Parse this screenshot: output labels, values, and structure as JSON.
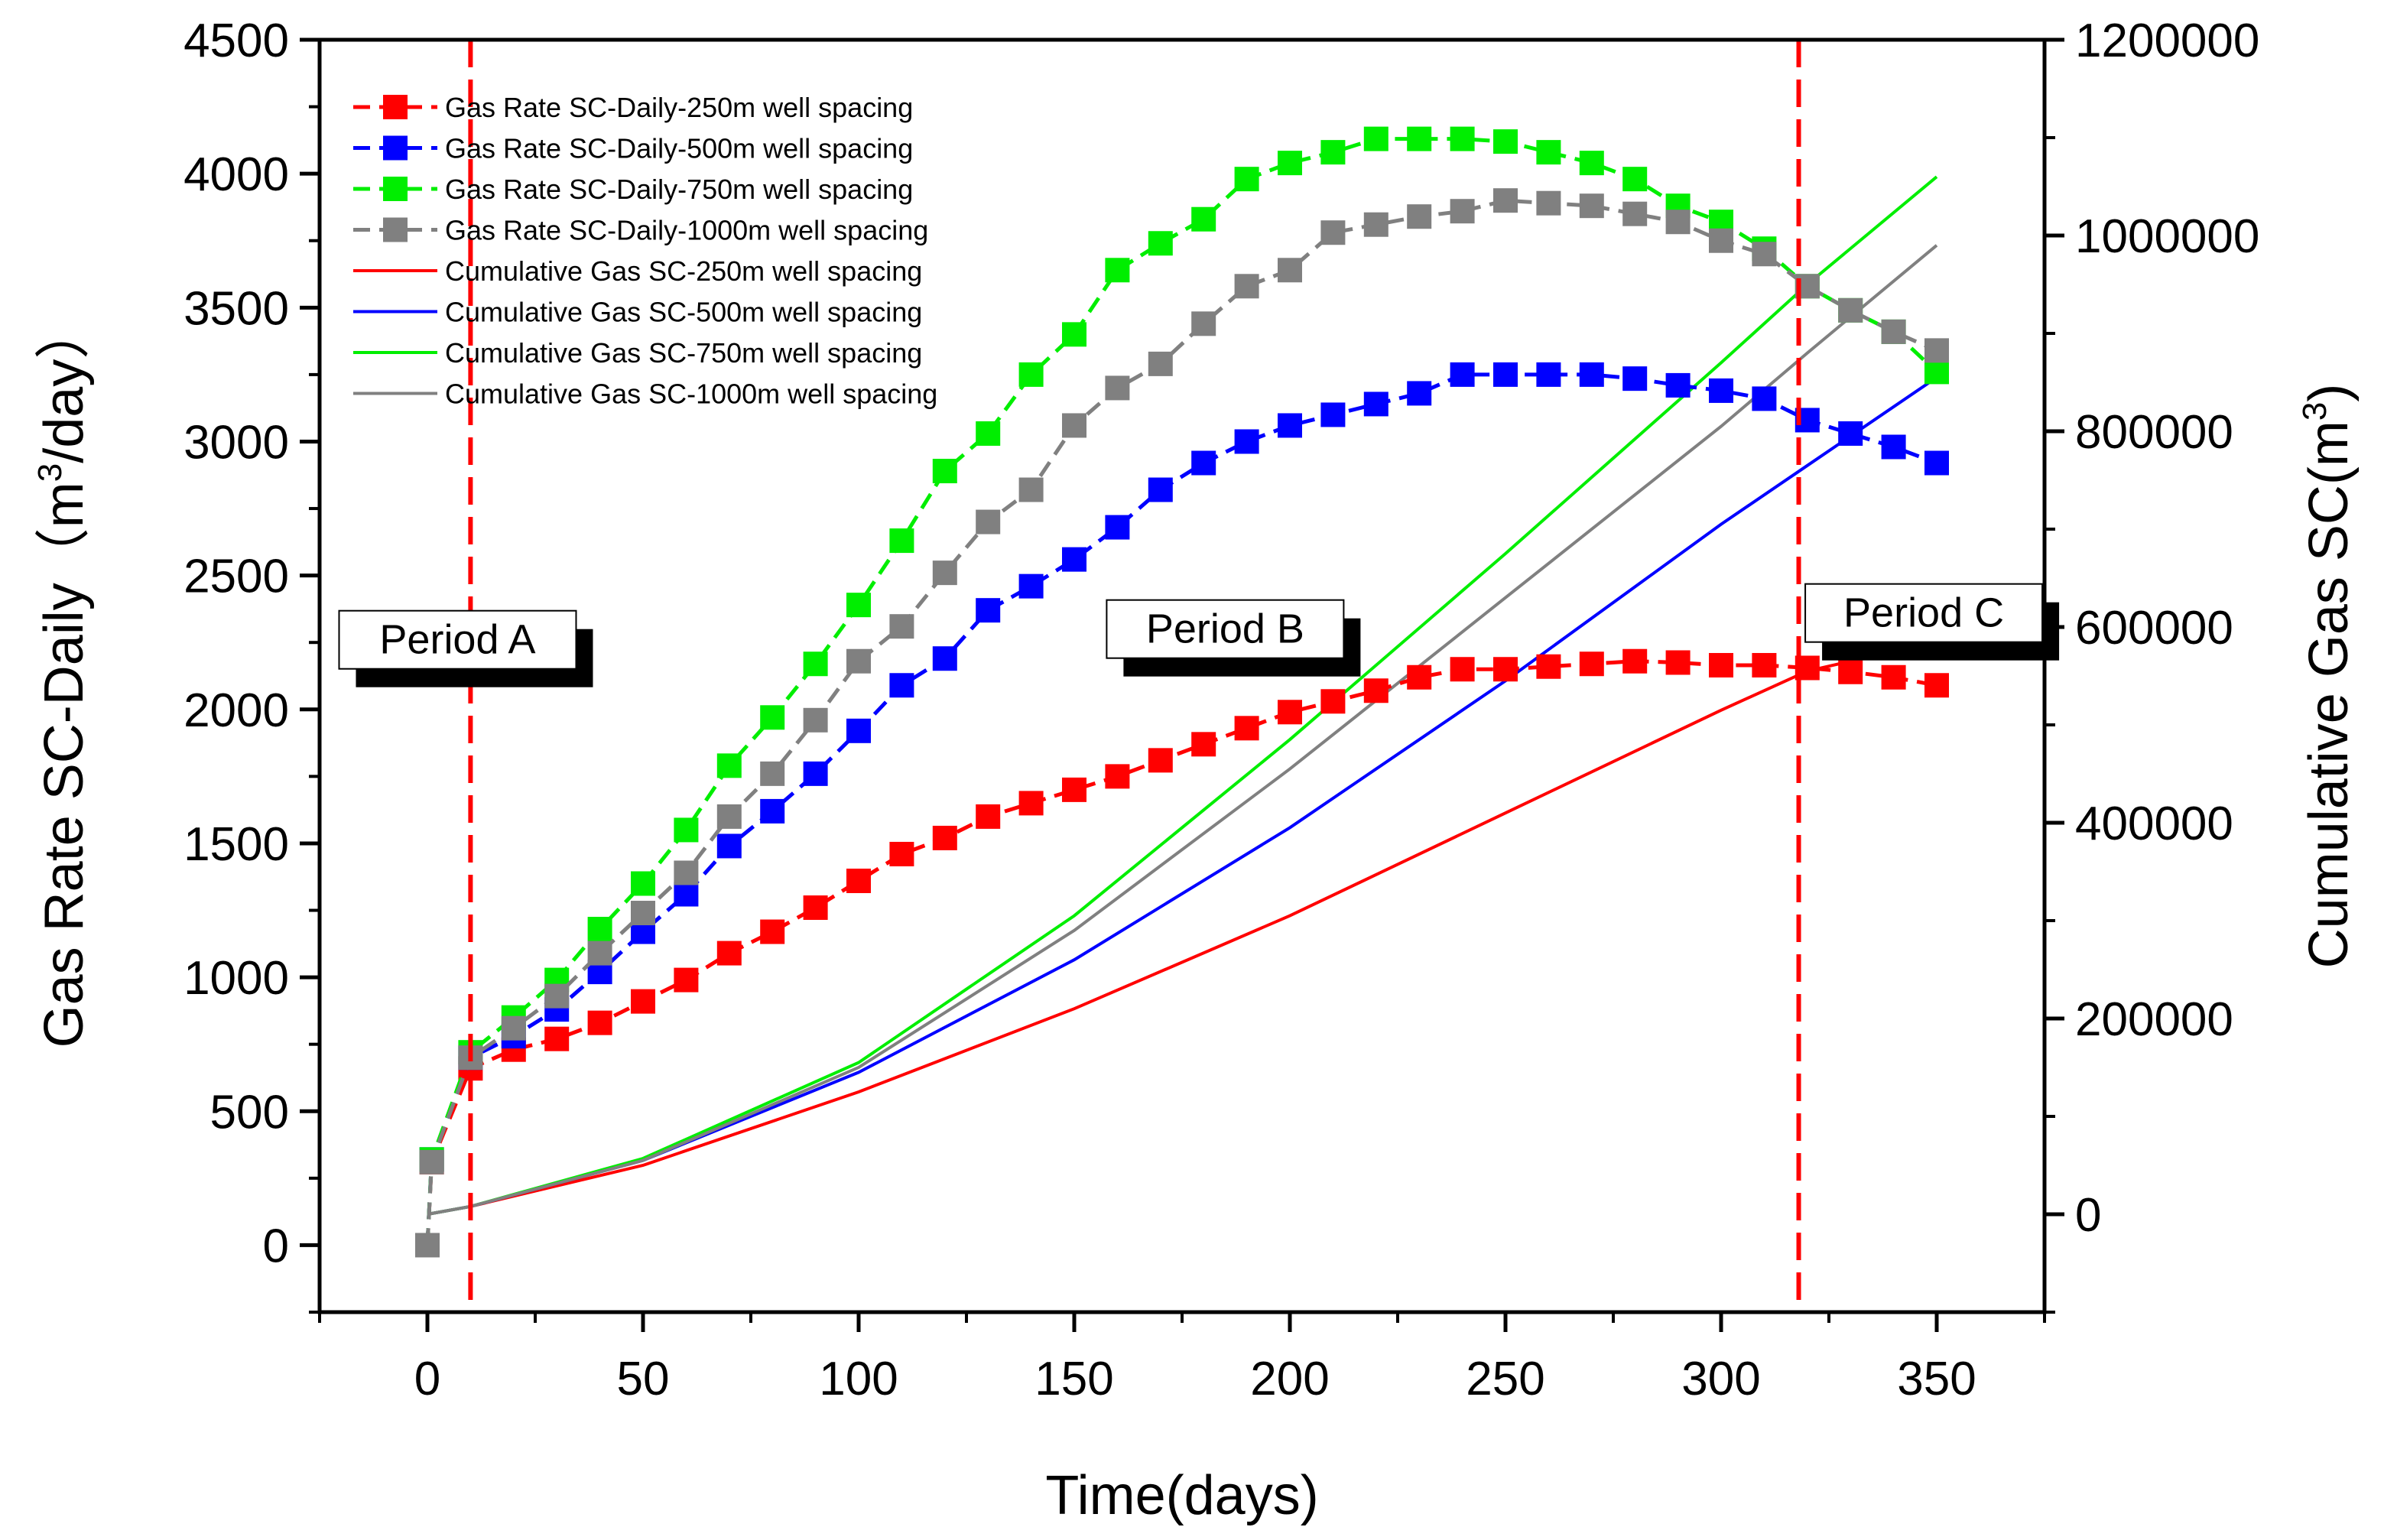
{
  "chart_data": {
    "type": "line",
    "title": "",
    "xlabel": "Time(days)",
    "ylabel": "Gas Rate SC-Daily（m³/day）",
    "ylabel_parts": {
      "base": "Gas Rate SC-Daily（m",
      "sup": "3",
      "tail": "/day）"
    },
    "y2label": "Cumulative Gas SC(m³)",
    "y2label_parts": {
      "base": "Cumulative Gas SC(m",
      "sup": "3",
      "tail": ")"
    },
    "xlim": [
      -25,
      375
    ],
    "ylim": [
      -250,
      4500
    ],
    "y2lim": [
      -100000,
      1200000
    ],
    "xticks": [
      0,
      50,
      100,
      150,
      200,
      250,
      300,
      350
    ],
    "yticks": [
      0,
      500,
      1000,
      1500,
      2000,
      2500,
      3000,
      3500,
      4000,
      4500
    ],
    "y2ticks": [
      0,
      200000,
      400000,
      600000,
      800000,
      1000000,
      1200000
    ],
    "grid": false,
    "legend_position": "top-left",
    "x": [
      0,
      1,
      10,
      20,
      30,
      40,
      50,
      60,
      70,
      80,
      90,
      100,
      110,
      120,
      130,
      140,
      150,
      160,
      170,
      180,
      190,
      200,
      210,
      220,
      230,
      240,
      250,
      260,
      270,
      280,
      290,
      300,
      310,
      320,
      330,
      340,
      350
    ],
    "series": [
      {
        "name": "Gas Rate SC-Daily-250m well spacing",
        "axis": "left",
        "style": "dash-square",
        "color": "#ff0000",
        "values": [
          0,
          310,
          660,
          730,
          770,
          830,
          910,
          990,
          1090,
          1170,
          1260,
          1360,
          1460,
          1520,
          1600,
          1650,
          1700,
          1750,
          1810,
          1870,
          1930,
          1990,
          2030,
          2070,
          2120,
          2150,
          2150,
          2160,
          2170,
          2180,
          2175,
          2165,
          2165,
          2155,
          2140,
          2120,
          2090
        ]
      },
      {
        "name": "Gas Rate SC-Daily-500m well spacing",
        "axis": "left",
        "style": "dash-square",
        "color": "#0000ff",
        "values": [
          0,
          320,
          700,
          780,
          880,
          1020,
          1170,
          1310,
          1490,
          1620,
          1760,
          1920,
          2090,
          2190,
          2370,
          2460,
          2560,
          2680,
          2820,
          2920,
          3000,
          3060,
          3100,
          3140,
          3180,
          3250,
          3250,
          3250,
          3250,
          3235,
          3210,
          3190,
          3160,
          3080,
          3030,
          2980,
          2920
        ]
      },
      {
        "name": "Gas Rate SC-Daily-750m well spacing",
        "axis": "left",
        "style": "dash-square",
        "color": "#00ee00",
        "values": [
          0,
          320,
          720,
          850,
          990,
          1180,
          1350,
          1550,
          1790,
          1970,
          2170,
          2390,
          2630,
          2890,
          3030,
          3250,
          3400,
          3640,
          3740,
          3830,
          3980,
          4040,
          4080,
          4130,
          4130,
          4130,
          4120,
          4080,
          4040,
          3980,
          3880,
          3820,
          3720,
          3580,
          3490,
          3410,
          3260
        ]
      },
      {
        "name": "Gas Rate SC-Daily-1000m well spacing",
        "axis": "left",
        "style": "dash-square",
        "color": "#808080",
        "values": [
          0,
          310,
          700,
          810,
          930,
          1090,
          1240,
          1390,
          1600,
          1760,
          1960,
          2180,
          2310,
          2510,
          2700,
          2820,
          3060,
          3200,
          3290,
          3440,
          3580,
          3640,
          3780,
          3810,
          3840,
          3860,
          3900,
          3890,
          3880,
          3850,
          3820,
          3750,
          3700,
          3580,
          3490,
          3410,
          3340
        ]
      },
      {
        "name": "Cumulative Gas SC-250m well spacing",
        "axis": "right",
        "style": "line",
        "color": "#ff0000",
        "x": [
          0,
          10,
          50,
          100,
          150,
          200,
          250,
          300,
          320,
          350
        ],
        "values": [
          0,
          8000,
          50000,
          125000,
          210000,
          305000,
          410000,
          515000,
          555000,
          585000
        ]
      },
      {
        "name": "Cumulative Gas SC-500m well spacing",
        "axis": "right",
        "style": "line",
        "color": "#0000ff",
        "x": [
          0,
          10,
          50,
          100,
          150,
          200,
          250,
          300,
          320,
          350
        ],
        "values": [
          0,
          8000,
          55000,
          145000,
          260000,
          395000,
          545000,
          705000,
          765000,
          855000
        ]
      },
      {
        "name": "Cumulative Gas SC-750m well spacing",
        "axis": "right",
        "style": "line",
        "color": "#00ee00",
        "x": [
          0,
          10,
          50,
          100,
          150,
          200,
          250,
          300,
          320,
          350
        ],
        "values": [
          0,
          8000,
          57000,
          155000,
          305000,
          485000,
          675000,
          870000,
          950000,
          1060000
        ]
      },
      {
        "name": "Cumulative Gas SC-1000m well spacing",
        "axis": "right",
        "style": "line",
        "color": "#808080",
        "x": [
          0,
          10,
          50,
          100,
          150,
          200,
          250,
          300,
          320,
          350
        ],
        "values": [
          0,
          8000,
          55000,
          150000,
          290000,
          455000,
          630000,
          805000,
          880000,
          990000
        ]
      }
    ],
    "vlines": [
      {
        "x": 10,
        "color": "#ff0000",
        "style": "dashed"
      },
      {
        "x": 318,
        "color": "#ff0000",
        "style": "dashed"
      }
    ],
    "annotations": [
      {
        "text": "Period A",
        "x": 7,
        "y": 2260
      },
      {
        "text": "Period B",
        "x": 185,
        "y": 2300
      },
      {
        "text": "Period C",
        "x": 347,
        "y": 2360
      }
    ]
  }
}
